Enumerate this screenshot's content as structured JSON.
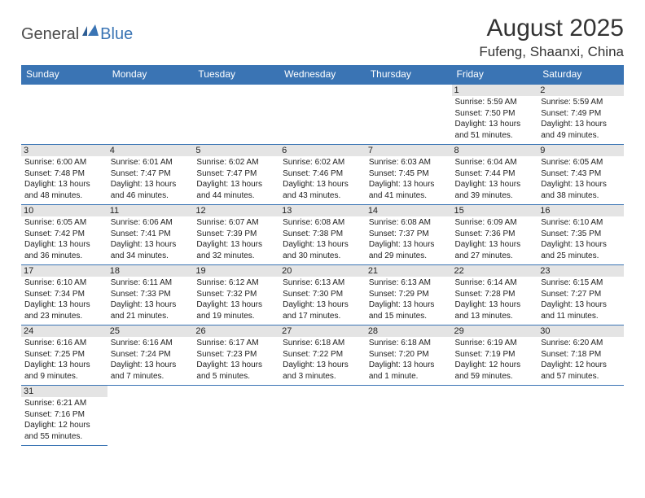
{
  "logo": {
    "general": "General",
    "blue": "Blue"
  },
  "title": "August 2025",
  "location": "Fufeng, Shaanxi, China",
  "colors": {
    "header_bg": "#3a74b4",
    "header_text": "#ffffff",
    "daynum_bg": "#e4e4e4",
    "border": "#3a74b4",
    "text": "#222222"
  },
  "weekdays": [
    "Sunday",
    "Monday",
    "Tuesday",
    "Wednesday",
    "Thursday",
    "Friday",
    "Saturday"
  ],
  "weeks": [
    [
      null,
      null,
      null,
      null,
      null,
      {
        "n": "1",
        "sr": "5:59 AM",
        "ss": "7:50 PM",
        "dl": "13 hours and 51 minutes."
      },
      {
        "n": "2",
        "sr": "5:59 AM",
        "ss": "7:49 PM",
        "dl": "13 hours and 49 minutes."
      }
    ],
    [
      {
        "n": "3",
        "sr": "6:00 AM",
        "ss": "7:48 PM",
        "dl": "13 hours and 48 minutes."
      },
      {
        "n": "4",
        "sr": "6:01 AM",
        "ss": "7:47 PM",
        "dl": "13 hours and 46 minutes."
      },
      {
        "n": "5",
        "sr": "6:02 AM",
        "ss": "7:47 PM",
        "dl": "13 hours and 44 minutes."
      },
      {
        "n": "6",
        "sr": "6:02 AM",
        "ss": "7:46 PM",
        "dl": "13 hours and 43 minutes."
      },
      {
        "n": "7",
        "sr": "6:03 AM",
        "ss": "7:45 PM",
        "dl": "13 hours and 41 minutes."
      },
      {
        "n": "8",
        "sr": "6:04 AM",
        "ss": "7:44 PM",
        "dl": "13 hours and 39 minutes."
      },
      {
        "n": "9",
        "sr": "6:05 AM",
        "ss": "7:43 PM",
        "dl": "13 hours and 38 minutes."
      }
    ],
    [
      {
        "n": "10",
        "sr": "6:05 AM",
        "ss": "7:42 PM",
        "dl": "13 hours and 36 minutes."
      },
      {
        "n": "11",
        "sr": "6:06 AM",
        "ss": "7:41 PM",
        "dl": "13 hours and 34 minutes."
      },
      {
        "n": "12",
        "sr": "6:07 AM",
        "ss": "7:39 PM",
        "dl": "13 hours and 32 minutes."
      },
      {
        "n": "13",
        "sr": "6:08 AM",
        "ss": "7:38 PM",
        "dl": "13 hours and 30 minutes."
      },
      {
        "n": "14",
        "sr": "6:08 AM",
        "ss": "7:37 PM",
        "dl": "13 hours and 29 minutes."
      },
      {
        "n": "15",
        "sr": "6:09 AM",
        "ss": "7:36 PM",
        "dl": "13 hours and 27 minutes."
      },
      {
        "n": "16",
        "sr": "6:10 AM",
        "ss": "7:35 PM",
        "dl": "13 hours and 25 minutes."
      }
    ],
    [
      {
        "n": "17",
        "sr": "6:10 AM",
        "ss": "7:34 PM",
        "dl": "13 hours and 23 minutes."
      },
      {
        "n": "18",
        "sr": "6:11 AM",
        "ss": "7:33 PM",
        "dl": "13 hours and 21 minutes."
      },
      {
        "n": "19",
        "sr": "6:12 AM",
        "ss": "7:32 PM",
        "dl": "13 hours and 19 minutes."
      },
      {
        "n": "20",
        "sr": "6:13 AM",
        "ss": "7:30 PM",
        "dl": "13 hours and 17 minutes."
      },
      {
        "n": "21",
        "sr": "6:13 AM",
        "ss": "7:29 PM",
        "dl": "13 hours and 15 minutes."
      },
      {
        "n": "22",
        "sr": "6:14 AM",
        "ss": "7:28 PM",
        "dl": "13 hours and 13 minutes."
      },
      {
        "n": "23",
        "sr": "6:15 AM",
        "ss": "7:27 PM",
        "dl": "13 hours and 11 minutes."
      }
    ],
    [
      {
        "n": "24",
        "sr": "6:16 AM",
        "ss": "7:25 PM",
        "dl": "13 hours and 9 minutes."
      },
      {
        "n": "25",
        "sr": "6:16 AM",
        "ss": "7:24 PM",
        "dl": "13 hours and 7 minutes."
      },
      {
        "n": "26",
        "sr": "6:17 AM",
        "ss": "7:23 PM",
        "dl": "13 hours and 5 minutes."
      },
      {
        "n": "27",
        "sr": "6:18 AM",
        "ss": "7:22 PM",
        "dl": "13 hours and 3 minutes."
      },
      {
        "n": "28",
        "sr": "6:18 AM",
        "ss": "7:20 PM",
        "dl": "13 hours and 1 minute."
      },
      {
        "n": "29",
        "sr": "6:19 AM",
        "ss": "7:19 PM",
        "dl": "12 hours and 59 minutes."
      },
      {
        "n": "30",
        "sr": "6:20 AM",
        "ss": "7:18 PM",
        "dl": "12 hours and 57 minutes."
      }
    ],
    [
      {
        "n": "31",
        "sr": "6:21 AM",
        "ss": "7:16 PM",
        "dl": "12 hours and 55 minutes."
      },
      null,
      null,
      null,
      null,
      null,
      null
    ]
  ],
  "labels": {
    "sunrise": "Sunrise:",
    "sunset": "Sunset:",
    "daylight": "Daylight:"
  }
}
